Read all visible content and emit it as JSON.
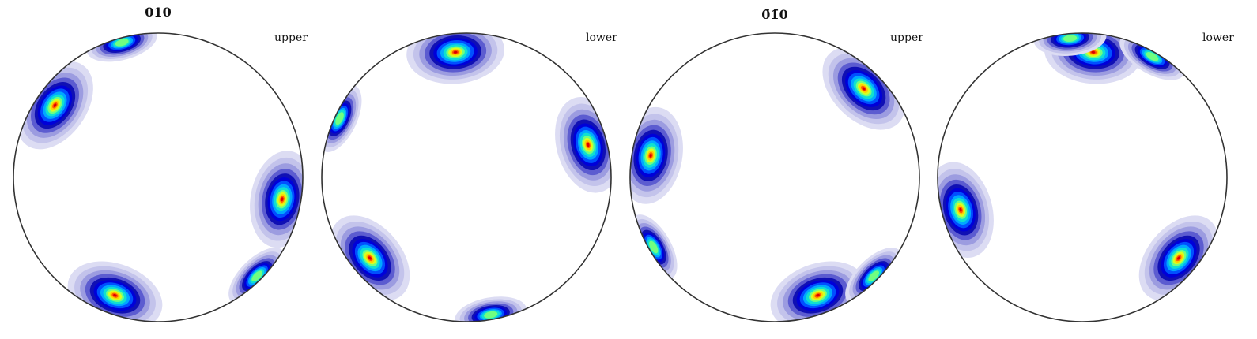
{
  "figure": {
    "titles": [
      "010",
      "0̄1̄0"
    ],
    "hemisphere_labels": [
      "upper",
      "lower",
      "upper",
      "lower"
    ]
  },
  "chart_data": [
    {
      "type": "heatmap",
      "plot": "pole figure",
      "title": "010",
      "hemisphere": "upper",
      "colormap": "jet",
      "peaks_azimuth_deg": [
        110,
        10,
        215,
        45,
        255
      ],
      "peaks_polar_fraction": [
        0.9,
        0.9,
        0.9,
        1.0,
        1.0
      ]
    },
    {
      "type": "heatmap",
      "plot": "pole figure",
      "title": "010",
      "hemisphere": "lower",
      "colormap": "jet",
      "peaks_azimuth_deg": [
        140,
        345,
        265,
        80,
        205
      ],
      "peaks_polar_fraction": [
        0.9,
        0.9,
        0.9,
        1.0,
        1.0
      ]
    },
    {
      "type": "heatmap",
      "plot": "pole figure",
      "title": "0̄1̄0",
      "hemisphere": "upper",
      "colormap": "jet",
      "peaks_azimuth_deg": [
        70,
        190,
        315,
        45,
        150
      ],
      "peaks_polar_fraction": [
        0.9,
        0.9,
        0.9,
        1.0,
        1.0
      ]
    },
    {
      "type": "heatmap",
      "plot": "pole figure",
      "title": "0̄1̄0",
      "hemisphere": "lower",
      "colormap": "jet",
      "peaks_azimuth_deg": [
        40,
        165,
        275,
        265,
        300
      ],
      "peaks_polar_fraction": [
        0.9,
        0.9,
        0.9,
        1.0,
        1.0
      ]
    }
  ]
}
